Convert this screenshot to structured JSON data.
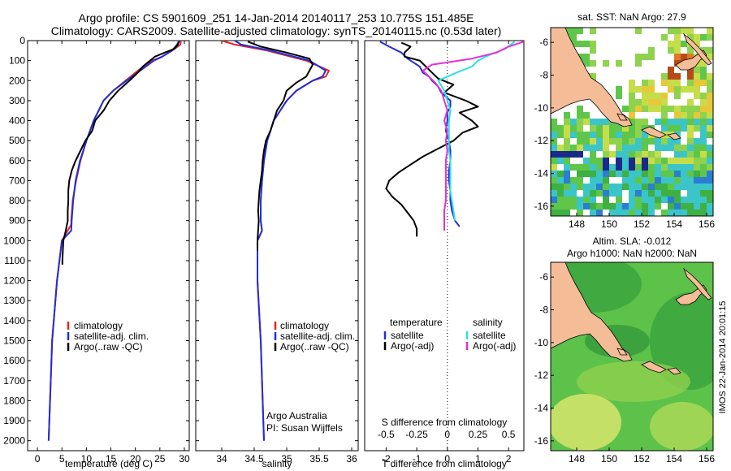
{
  "header": {
    "line1": "Argo profile: CS 5901609_251 14-Jan-2014 20140117_253 10.775S 151.485E",
    "line2": "Climatology: CARS2009. Satellite-adjusted climatology: synTS_20140115.nc (0.53d later)"
  },
  "colors": {
    "climatology": "#e8231f",
    "satellite": "#1f2fd8",
    "argo": "#000000",
    "sal_satellite": "#2be0e8",
    "sal_argo": "#e52fd8"
  },
  "chart_data": [
    {
      "type": "line",
      "panel": "temperature",
      "xlabel": "temperature (deg C)",
      "xlim": [
        -2,
        31
      ],
      "ylim": [
        2050,
        0
      ],
      "xticks": [
        "0",
        "5",
        "10",
        "15",
        "20",
        "25",
        "30"
      ],
      "yticks": [
        "0",
        "100",
        "200",
        "300",
        "400",
        "500",
        "600",
        "700",
        "800",
        "900",
        "1000",
        "1100",
        "1200",
        "1300",
        "1400",
        "1500",
        "1600",
        "1700",
        "1800",
        "1900",
        "2000"
      ],
      "legend": [
        "climatology",
        "satellite-adj. clim.",
        "Argo(..raw -QC)"
      ],
      "series": [
        {
          "name": "climatology",
          "y": [
            0,
            20,
            50,
            80,
            100,
            150,
            200,
            250,
            300,
            400,
            500,
            600,
            700,
            800,
            900,
            920,
            1000,
            1200,
            1500,
            2000
          ],
          "x": [
            29.3,
            29.2,
            27.5,
            25.5,
            23.5,
            20.5,
            18,
            15.5,
            13.5,
            11.5,
            10,
            8.8,
            7.9,
            7.2,
            6.9,
            6.9,
            5,
            4,
            3,
            2.3
          ]
        },
        {
          "name": "satellite-adj. clim.",
          "y": [
            0,
            20,
            50,
            80,
            100,
            150,
            200,
            250,
            300,
            400,
            500,
            600,
            700,
            800,
            900,
            950,
            1000,
            1200,
            1500,
            2000
          ],
          "x": [
            29.1,
            28.5,
            27.5,
            25.5,
            23.8,
            21,
            18.2,
            15.5,
            13.5,
            11.5,
            10,
            8.7,
            7.8,
            7.3,
            7,
            6.9,
            5,
            4,
            3,
            2.3
          ]
        },
        {
          "name": "Argo(..raw -QC)",
          "y": [
            5,
            20,
            40,
            60,
            80,
            100,
            130,
            160,
            200,
            250,
            300,
            350,
            400,
            450,
            500,
            550,
            600,
            650,
            700,
            750,
            800,
            850,
            900,
            950,
            1000,
            1050,
            1100,
            1120
          ],
          "x": [
            28.8,
            28.7,
            28,
            26,
            24,
            23,
            21.5,
            20.5,
            18.8,
            16.5,
            14.7,
            13.5,
            11.8,
            11.2,
            9.8,
            8.8,
            7.8,
            7,
            6.5,
            6.3,
            6.3,
            6.2,
            6.2,
            5.8,
            5.3,
            5.2,
            5.1,
            5.1
          ]
        }
      ]
    },
    {
      "type": "line",
      "panel": "salinity",
      "xlabel": "salinity",
      "xlim": [
        33.6,
        36.1
      ],
      "ylim": [
        2050,
        0
      ],
      "xticks": [
        "34",
        "34.5",
        "35",
        "35.5",
        "36"
      ],
      "legend": [
        "climatology",
        "satellite-adj. clim.",
        "Argo(..raw -QC)"
      ],
      "series": [
        {
          "name": "climatology",
          "y": [
            0,
            20,
            50,
            100,
            150,
            180,
            200,
            250,
            300,
            400,
            500,
            600,
            700,
            800,
            900,
            950,
            1000,
            1200,
            1500,
            2000
          ],
          "x": [
            34.0,
            34.2,
            34.7,
            35.3,
            35.65,
            35.6,
            35.4,
            35.15,
            35,
            34.8,
            34.7,
            34.65,
            34.62,
            34.6,
            34.6,
            34.62,
            34.55,
            34.55,
            34.6,
            34.65
          ]
        },
        {
          "name": "satellite-adj. clim.",
          "y": [
            0,
            20,
            50,
            100,
            150,
            180,
            200,
            250,
            300,
            400,
            500,
            600,
            700,
            800,
            900,
            950,
            1000,
            1200,
            1500,
            2000
          ],
          "x": [
            34.2,
            34.3,
            34.75,
            35.35,
            35.6,
            35.55,
            35.4,
            35.15,
            35,
            34.8,
            34.7,
            34.65,
            34.62,
            34.6,
            34.6,
            34.62,
            34.55,
            34.55,
            34.6,
            34.65
          ]
        },
        {
          "name": "Argo(..raw -QC)",
          "y": [
            5,
            30,
            60,
            90,
            120,
            150,
            180,
            210,
            250,
            300,
            350,
            400,
            450,
            500,
            550,
            600,
            650,
            700,
            750,
            800,
            850,
            900,
            950,
            1000,
            1050
          ],
          "x": [
            34.4,
            34.6,
            35,
            35.35,
            35.4,
            35.35,
            35.3,
            35.15,
            35,
            34.95,
            34.85,
            34.8,
            34.75,
            34.68,
            34.65,
            34.63,
            34.62,
            34.6,
            34.58,
            34.57,
            34.56,
            34.57,
            34.56,
            34.55,
            34.55
          ]
        }
      ],
      "credit": [
        "Argo Australia",
        "PI: Susan Wijffels"
      ]
    },
    {
      "type": "line",
      "panel": "difference",
      "xlabel": "T difference from climatology",
      "xlabel_top": "S difference from climatology",
      "xlim": [
        -2.7,
        2.5
      ],
      "ylim": [
        2050,
        0
      ],
      "xticks": [
        "-2",
        "-1",
        "0",
        "1",
        "2"
      ],
      "xticks_sal": [
        "-0.5",
        "-0.25",
        "0",
        "0.25",
        "0.5"
      ],
      "legend_titles": [
        "temperature",
        "salinity"
      ],
      "legend": [
        "satellite",
        "Argo(-adj)",
        "satellite",
        "Argo(-adj)"
      ],
      "series": [
        {
          "name": "satellite",
          "y": [
            5,
            30,
            60,
            90,
            110,
            130,
            160,
            180,
            200,
            230,
            260,
            300,
            330,
            360,
            400,
            450,
            500,
            550,
            600,
            650,
            700,
            750,
            800,
            850,
            900,
            920,
            930
          ],
          "x": [
            -2.2,
            -1.9,
            -1.5,
            -1.3,
            -1.1,
            -0.9,
            -0.8,
            -0.6,
            -0.5,
            -0.3,
            -0.2,
            0.1,
            0.1,
            0,
            0,
            -0.05,
            0.05,
            0.1,
            0.1,
            0.05,
            0.05,
            0.1,
            0.1,
            0.15,
            0.25,
            0.35,
            0.4
          ]
        },
        {
          "name": "Argo(-adj)",
          "y": [
            10,
            30,
            60,
            80,
            100,
            130,
            160,
            190,
            220,
            260,
            300,
            330,
            360,
            400,
            430,
            460,
            500,
            540,
            580,
            620,
            660,
            700,
            740,
            780,
            820,
            860,
            900,
            940,
            980
          ],
          "x": [
            -1.5,
            -1.2,
            -1.4,
            -1.4,
            -0.9,
            -0.7,
            -0.5,
            -0.3,
            0.2,
            -0.1,
            0.6,
            1.0,
            0.4,
            0.8,
            1.0,
            0.5,
            0.2,
            -0.3,
            -0.8,
            -1.2,
            -1.6,
            -1.9,
            -2.0,
            -1.8,
            -1.5,
            -1.3,
            -1.1,
            -1.0,
            -1.0
          ]
        },
        {
          "name": "satellite",
          "y": [
            5,
            40,
            70,
            100,
            130,
            160,
            200,
            250,
            300,
            350,
            400,
            450,
            500,
            550,
            600,
            650,
            700,
            750,
            800,
            850,
            900
          ],
          "x": [
            2.2,
            1.9,
            1.4,
            1.0,
            0.8,
            0.3,
            -0.3,
            -0.1,
            0,
            0.1,
            0.05,
            0.05,
            0.05,
            0.05,
            0.1,
            0.1,
            0.1,
            0.1,
            0.15,
            0.2,
            0.25
          ]
        },
        {
          "name": "Argo(-adj)",
          "y": [
            5,
            30,
            60,
            90,
            120,
            150,
            180,
            210,
            250,
            300,
            350,
            400,
            450,
            500,
            550,
            600,
            650,
            700,
            750,
            800,
            850,
            900,
            950
          ],
          "x": [
            2.5,
            2.0,
            1.6,
            0.8,
            -0.5,
            -0.8,
            -0.6,
            -0.4,
            -0.2,
            -0.1,
            0,
            -0.1,
            0,
            -0.05,
            0,
            -0.05,
            -0.05,
            -0.05,
            -0.05,
            -0.05,
            -0.1,
            -0.1,
            -0.1
          ]
        }
      ]
    },
    {
      "type": "heatmap",
      "panel": "sst-map",
      "title": "sat. SST: NaN Argo: 27.9",
      "xlim": [
        146.4,
        156.4
      ],
      "ylim": [
        -16.6,
        -5.1
      ],
      "xticks": [
        "148",
        "150",
        "152",
        "154",
        "156"
      ],
      "yticks": [
        "-6",
        "-8",
        "-10",
        "-12",
        "-14",
        "-16"
      ]
    },
    {
      "type": "heatmap",
      "panel": "sla-map",
      "title_line1": "Altim. SLA: -0.012",
      "title_line2": "Argo h1000: NaN h2000: NaN",
      "xlim": [
        146.4,
        156.4
      ],
      "ylim": [
        -16.6,
        -5.1
      ],
      "xticks": [
        "148",
        "150",
        "152",
        "154",
        "156"
      ],
      "yticks": [
        "-6",
        "-8",
        "-10",
        "-12",
        "-14",
        "-16"
      ]
    }
  ],
  "footer": {
    "stamp": "IMOS 22-Jan-2014 20:01:15"
  }
}
